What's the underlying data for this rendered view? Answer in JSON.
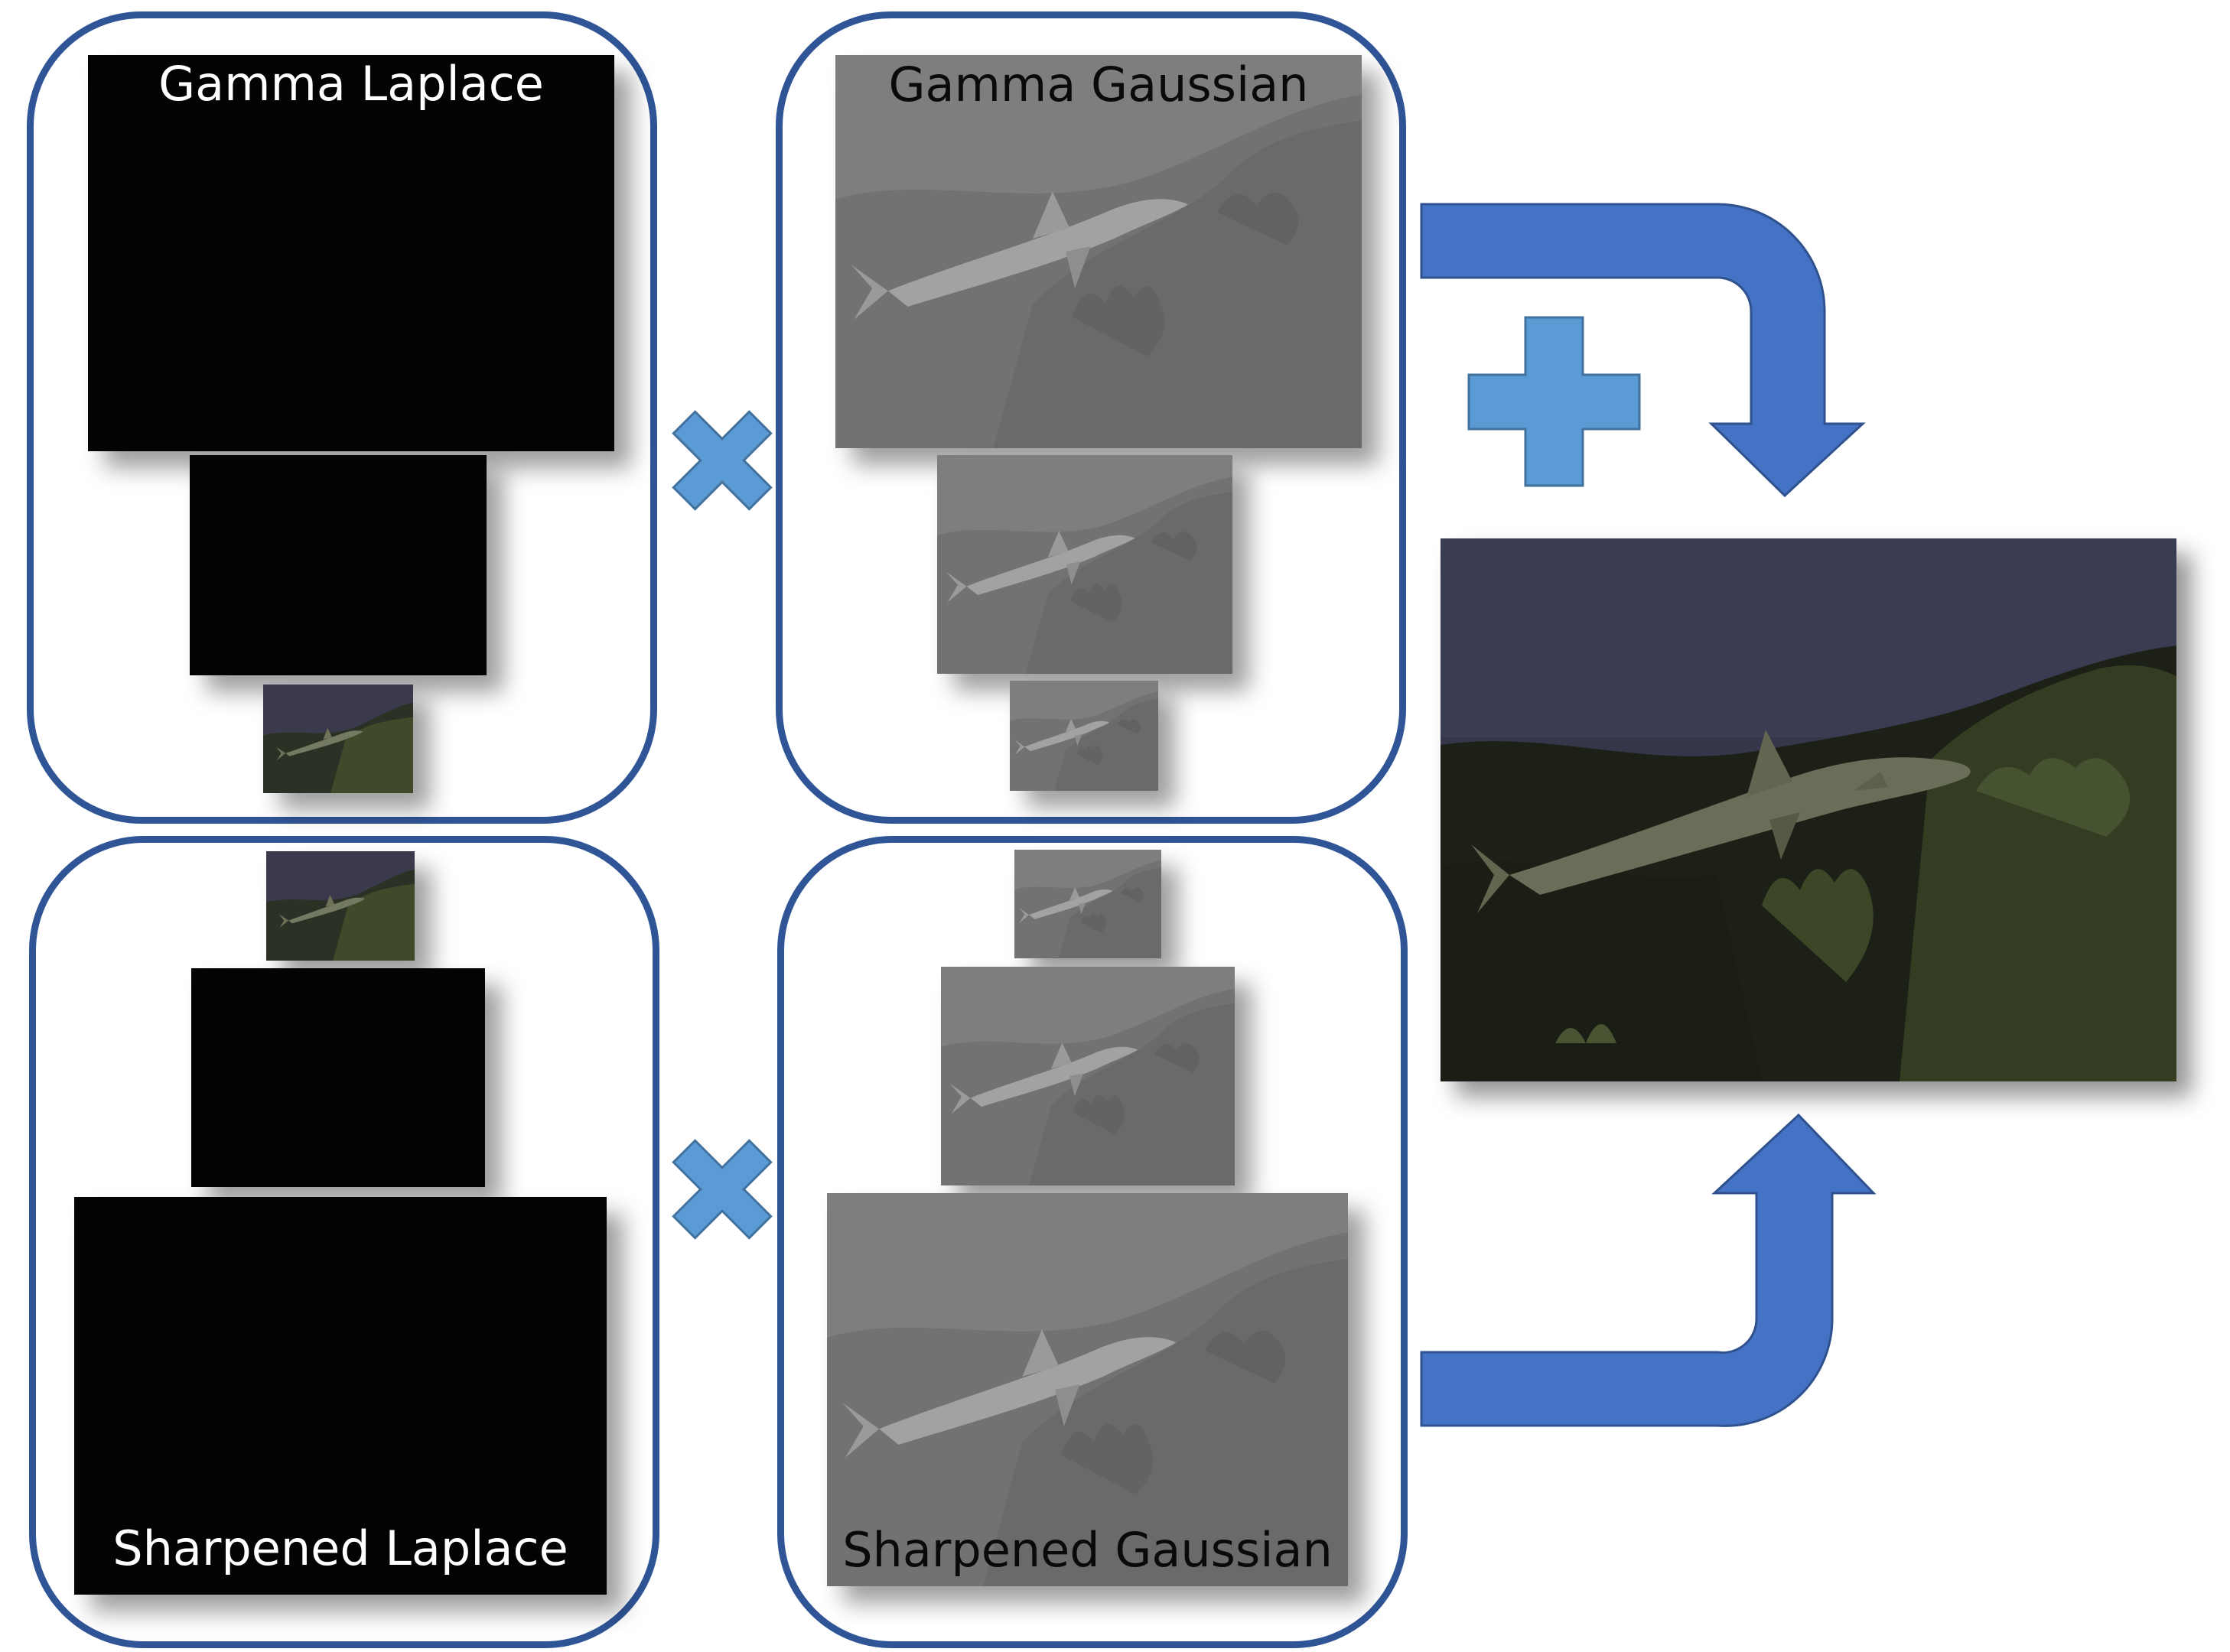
{
  "labels": {
    "gamma_laplace": "Gamma Laplace",
    "gamma_gaussian": "Gamma Gaussian",
    "sharpened_laplace": "Sharpened Laplace",
    "sharpened_gaussian": "Sharpened Gaussian"
  },
  "colors": {
    "panel_border": "#2f5597",
    "multiply_sign": "#5b9bd5",
    "plus_sign": "#5b9bd5",
    "flow_arrow": "#4472c4",
    "laplace_fill": "#020302",
    "gaussian_fill": "#7d7d7d"
  },
  "icons": {
    "multiply_top": "multiply-icon",
    "multiply_bottom": "multiply-icon",
    "plus": "plus-icon",
    "arrow_top": "curved-arrow-down-icon",
    "arrow_bottom": "curved-arrow-up-icon"
  }
}
